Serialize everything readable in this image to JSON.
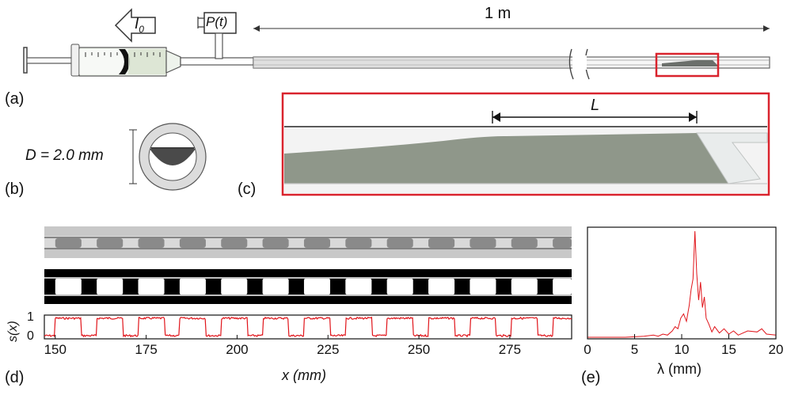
{
  "labels": {
    "a": "(a)",
    "b": "(b)",
    "c": "(c)",
    "d": "(d)",
    "e": "(e)"
  },
  "apparatus": {
    "length_label": "1 m",
    "flow_label": "I",
    "flow_subscript": "0",
    "pressure_label": "P(t)",
    "red_box_color": "#d9232d"
  },
  "cross_section": {
    "diameter_label": "D = 2.0 mm"
  },
  "zoom": {
    "length_label": "L"
  },
  "signal": {
    "ylabel": "s(x)",
    "y_ticks": [
      "1",
      "0"
    ],
    "xlabel": "x (mm)",
    "x_ticks": [
      "150",
      "175",
      "200",
      "225",
      "250",
      "275"
    ],
    "color": "#e0141a"
  },
  "chart_data": [
    {
      "type": "line",
      "panel": "(d)",
      "xlabel": "x (mm)",
      "ylabel": "s(x)",
      "xlim": [
        147,
        292
      ],
      "ylim": [
        0,
        1
      ],
      "period_mm": 11.4,
      "first_plug_start_mm": 150.0,
      "plug_length_mm": 7.2,
      "levels": {
        "plug": 1,
        "gap": 0
      },
      "x_ticks": [
        150,
        175,
        200,
        225,
        250,
        275
      ],
      "y_ticks": [
        0,
        1
      ]
    },
    {
      "type": "line",
      "panel": "(e)",
      "xlabel": "λ (mm)",
      "xlim": [
        0,
        20
      ],
      "x_ticks": [
        0,
        5,
        10,
        15,
        20
      ],
      "peak_lambda_mm": 11.4,
      "peak_value": 1.0,
      "x": [
        0,
        4,
        6,
        7,
        7.5,
        8,
        8.5,
        9,
        9.3,
        9.6,
        9.9,
        10.2,
        10.5,
        10.8,
        11.0,
        11.2,
        11.4,
        11.6,
        11.8,
        12.0,
        12.2,
        12.4,
        12.6,
        12.9,
        13.2,
        13.5,
        14,
        14.5,
        15,
        15.5,
        16,
        17,
        18,
        18.5,
        19,
        20
      ],
      "values": [
        0,
        0,
        0.01,
        0.02,
        0.01,
        0.03,
        0.02,
        0.06,
        0.1,
        0.08,
        0.18,
        0.22,
        0.15,
        0.3,
        0.45,
        0.55,
        1.0,
        0.6,
        0.35,
        0.52,
        0.28,
        0.38,
        0.18,
        0.12,
        0.05,
        0.1,
        0.04,
        0.08,
        0.03,
        0.06,
        0.02,
        0.06,
        0.05,
        0.08,
        0.03,
        0.02
      ],
      "color": "#e0141a"
    }
  ]
}
